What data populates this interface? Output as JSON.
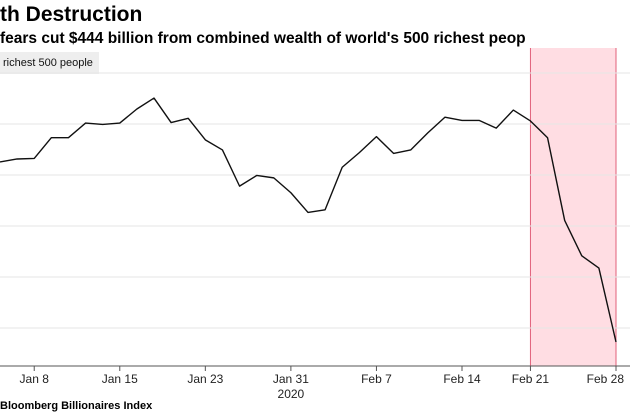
{
  "title": "th Destruction",
  "subtitle": "fears cut $444 billion from combined wealth of world's 500 richest peop",
  "legend_label": "richest 500 people",
  "source": "Bloomberg Billionaires Index",
  "colors": {
    "line": "#111111",
    "highlight_fill": "#ffdde3",
    "highlight_border": "#e0607a",
    "grid": "#e6e6e6",
    "legend_bg": "#eeeeee"
  },
  "chart_data": {
    "type": "line",
    "title": "th Destruction",
    "subtitle": "fears cut $444 billion from combined wealth of world's 500 richest peop",
    "legend": [
      "richest 500 people"
    ],
    "x_index_range": [
      0,
      36
    ],
    "y_range": [
      0,
      100
    ],
    "grid": "horizontal",
    "x_ticks": [
      {
        "index": 2,
        "label": "Jan 8"
      },
      {
        "index": 7,
        "label": "Jan 15"
      },
      {
        "index": 12,
        "label": "Jan 23"
      },
      {
        "index": 17,
        "label": "Jan 31"
      },
      {
        "index": 22,
        "label": "Feb 7"
      },
      {
        "index": 27,
        "label": "Feb 14"
      },
      {
        "index": 31,
        "label": "Feb 21"
      },
      {
        "index": 36,
        "label": "Feb 28"
      }
    ],
    "year_label": {
      "index": 17,
      "label": "2020"
    },
    "values": [
      67.7,
      68.8,
      69.0,
      76.8,
      76.8,
      82.3,
      81.8,
      82.3,
      87.6,
      91.7,
      82.5,
      84.1,
      76.0,
      72.2,
      58.6,
      62.6,
      61.7,
      56.1,
      48.7,
      49.7,
      65.7,
      71.2,
      77.2,
      70.9,
      72.2,
      78.6,
      84.5,
      83.3,
      83.3,
      80.4,
      87.2,
      83.1,
      76.8,
      45.7,
      32.4,
      27.8,
      0.0
    ],
    "highlight": {
      "start_index": 31,
      "end_index": 36,
      "label": ""
    }
  }
}
